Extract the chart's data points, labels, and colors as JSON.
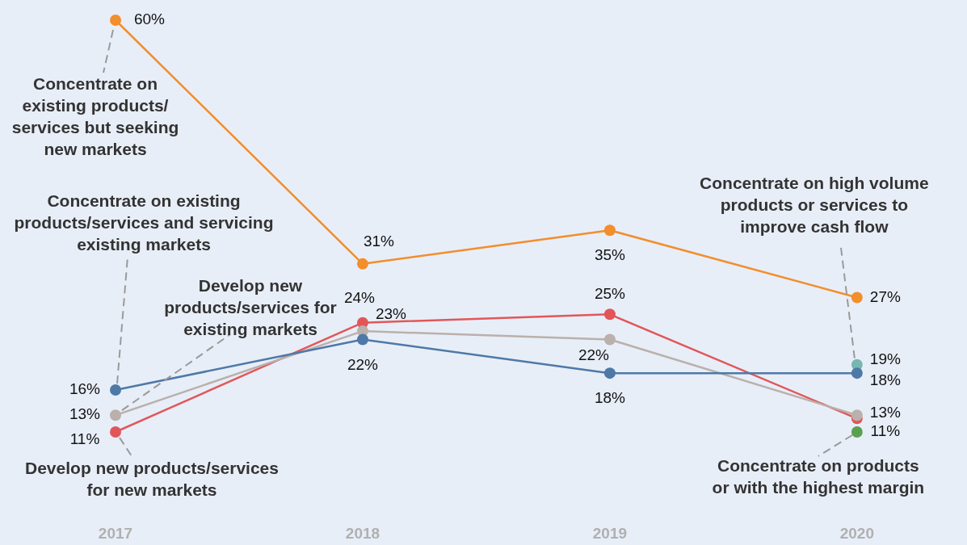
{
  "chart_data": {
    "type": "line",
    "categories": [
      "2017",
      "2018",
      "2019",
      "2020"
    ],
    "series": [
      {
        "name": "Concentrate on existing products/ services but seeking new markets",
        "color": "#f28e2b",
        "values": [
          60,
          31,
          35,
          27
        ],
        "value_labels": [
          "60%",
          "31%",
          "35%",
          "27%"
        ]
      },
      {
        "name": "Concentrate on existing products/services and servicing existing markets",
        "color": "#4e79a7",
        "values": [
          16,
          22,
          18,
          18
        ],
        "value_labels": [
          "16%",
          "22%",
          "18%",
          "18%"
        ]
      },
      {
        "name": "Develop new products/services for existing markets",
        "color": "#bab0ac",
        "values": [
          13,
          23,
          22,
          13
        ],
        "value_labels": [
          "13%",
          "23%",
          "22%",
          "13%"
        ]
      },
      {
        "name": "Develop new products/services for new markets",
        "color": "#e15759",
        "values": [
          11,
          24,
          25,
          12.6
        ],
        "value_labels": [
          "11%",
          "24%",
          "25%",
          null
        ]
      },
      {
        "name": "Concentrate on high volume products or services to improve cash flow",
        "color": "#76b7b2",
        "values": [
          null,
          null,
          null,
          19
        ],
        "value_labels": [
          null,
          null,
          null,
          "19%"
        ]
      },
      {
        "name": "Concentrate on products or with the highest margin",
        "color": "#59a14f",
        "values": [
          null,
          null,
          null,
          11
        ],
        "value_labels": [
          null,
          null,
          null,
          "11%"
        ]
      }
    ],
    "marker": "circle",
    "line_style": "solid",
    "legend": false,
    "grid": false,
    "tick_labels": "x"
  }
}
